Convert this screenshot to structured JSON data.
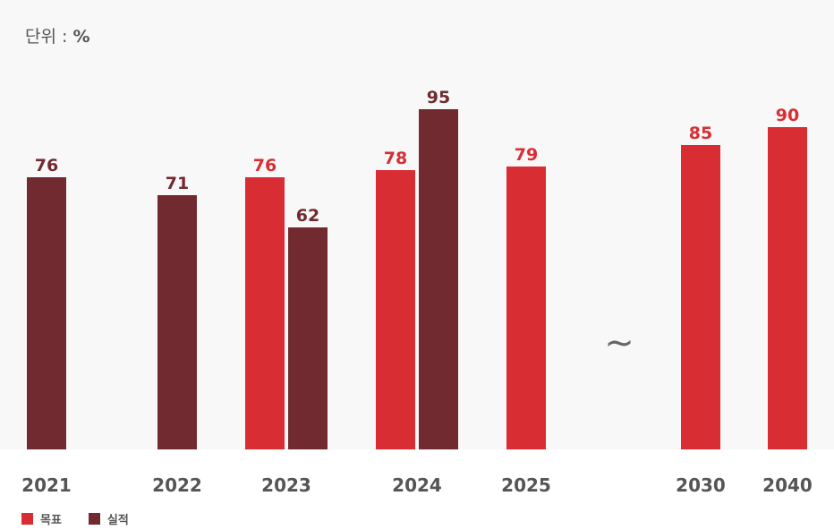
{
  "chart_data": {
    "type": "bar",
    "unit_prefix": "단위 : ",
    "unit": "%",
    "categories": [
      "2021",
      "2022",
      "2023",
      "2024",
      "2025",
      "2030",
      "2040"
    ],
    "gap_marker": "~",
    "series": [
      {
        "name": "목표",
        "color": "#d92d34",
        "values": [
          null,
          null,
          76,
          78,
          79,
          85,
          90
        ]
      },
      {
        "name": "실적",
        "color": "#722a31",
        "values": [
          76,
          71,
          62,
          95,
          null,
          null,
          null
        ]
      }
    ],
    "ylim": [
      0,
      100
    ],
    "legend_position": "bottom-left",
    "grid": false
  }
}
